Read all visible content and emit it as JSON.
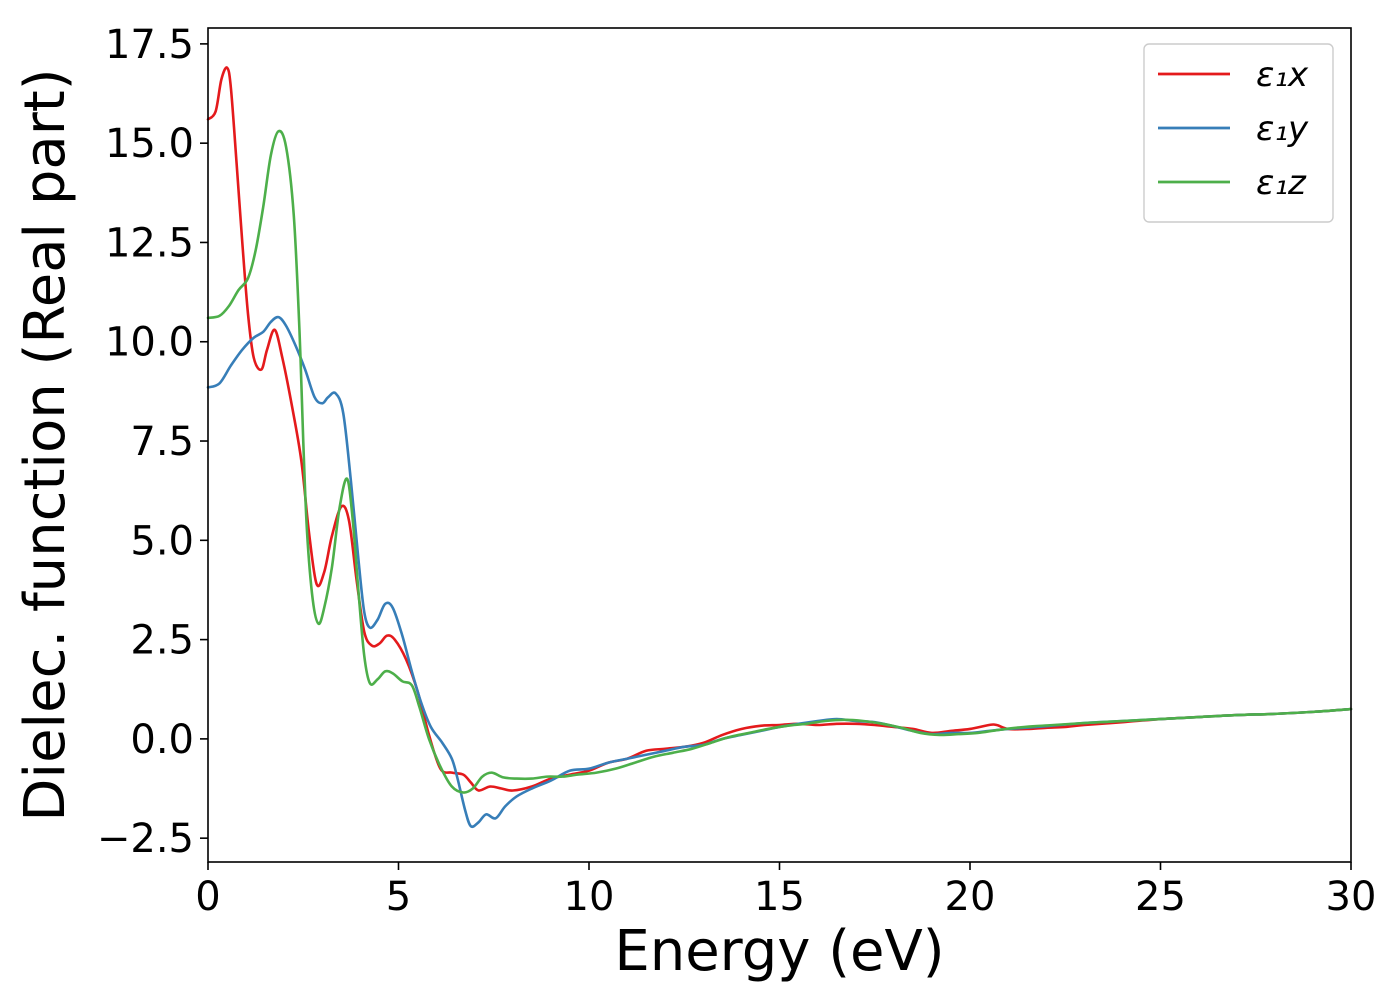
{
  "chart_data": {
    "type": "line",
    "xlabel": "Energy (eV)",
    "ylabel": "Dielec. function (Real part)",
    "xlim": [
      0,
      30
    ],
    "ylim": [
      -3.1,
      17.9
    ],
    "xticks": [
      0,
      5,
      10,
      15,
      20,
      25,
      30
    ],
    "xtick_labels": [
      "0",
      "5",
      "10",
      "15",
      "20",
      "25",
      "30"
    ],
    "yticks": [
      -2.5,
      0,
      2.5,
      5,
      7.5,
      10,
      12.5,
      15,
      17.5
    ],
    "ytick_labels": [
      "−2.5",
      "0.0",
      "2.5",
      "5.0",
      "7.5",
      "10.0",
      "12.5",
      "15.0",
      "17.5"
    ],
    "grid": false,
    "legend_position": "top-right",
    "series": [
      {
        "name": "ε₁x",
        "color": "#e41a1c",
        "points": [
          [
            0,
            15.6
          ],
          [
            0.2,
            15.8
          ],
          [
            0.35,
            16.6
          ],
          [
            0.5,
            16.9
          ],
          [
            0.6,
            16.4
          ],
          [
            0.75,
            14.5
          ],
          [
            0.9,
            12.5
          ],
          [
            1.05,
            10.7
          ],
          [
            1.2,
            9.6
          ],
          [
            1.4,
            9.3
          ],
          [
            1.55,
            9.8
          ],
          [
            1.75,
            10.3
          ],
          [
            1.95,
            9.6
          ],
          [
            2.2,
            8.4
          ],
          [
            2.45,
            7.0
          ],
          [
            2.65,
            5.2
          ],
          [
            2.85,
            3.9
          ],
          [
            3.05,
            4.2
          ],
          [
            3.25,
            5.1
          ],
          [
            3.5,
            5.85
          ],
          [
            3.7,
            5.5
          ],
          [
            3.9,
            4.0
          ],
          [
            4.1,
            2.7
          ],
          [
            4.3,
            2.35
          ],
          [
            4.5,
            2.4
          ],
          [
            4.7,
            2.6
          ],
          [
            4.9,
            2.5
          ],
          [
            5.2,
            2.0
          ],
          [
            5.5,
            1.2
          ],
          [
            5.8,
            0.1
          ],
          [
            6.1,
            -0.75
          ],
          [
            6.4,
            -0.85
          ],
          [
            6.7,
            -0.9
          ],
          [
            6.9,
            -1.1
          ],
          [
            7.1,
            -1.3
          ],
          [
            7.4,
            -1.2
          ],
          [
            7.7,
            -1.25
          ],
          [
            8.0,
            -1.3
          ],
          [
            8.5,
            -1.2
          ],
          [
            9.0,
            -1.0
          ],
          [
            9.5,
            -0.9
          ],
          [
            10.0,
            -0.8
          ],
          [
            10.5,
            -0.6
          ],
          [
            11.0,
            -0.5
          ],
          [
            11.5,
            -0.3
          ],
          [
            12.0,
            -0.25
          ],
          [
            12.5,
            -0.2
          ],
          [
            13.0,
            -0.1
          ],
          [
            13.5,
            0.1
          ],
          [
            14.0,
            0.25
          ],
          [
            14.5,
            0.33
          ],
          [
            15.0,
            0.35
          ],
          [
            15.5,
            0.38
          ],
          [
            16.0,
            0.35
          ],
          [
            16.5,
            0.38
          ],
          [
            17.0,
            0.38
          ],
          [
            17.5,
            0.35
          ],
          [
            18.0,
            0.3
          ],
          [
            18.5,
            0.25
          ],
          [
            19.0,
            0.15
          ],
          [
            19.5,
            0.2
          ],
          [
            20.0,
            0.25
          ],
          [
            20.5,
            0.35
          ],
          [
            20.7,
            0.35
          ],
          [
            21.0,
            0.25
          ],
          [
            21.5,
            0.25
          ],
          [
            22.0,
            0.28
          ],
          [
            22.5,
            0.3
          ],
          [
            23.0,
            0.35
          ],
          [
            24.0,
            0.42
          ],
          [
            25.0,
            0.5
          ],
          [
            26.0,
            0.55
          ],
          [
            27.0,
            0.6
          ],
          [
            28.0,
            0.63
          ],
          [
            29.0,
            0.68
          ],
          [
            30.0,
            0.75
          ]
        ]
      },
      {
        "name": "ε₁y",
        "color": "#377eb8",
        "points": [
          [
            0,
            8.85
          ],
          [
            0.3,
            8.95
          ],
          [
            0.6,
            9.4
          ],
          [
            0.9,
            9.8
          ],
          [
            1.2,
            10.1
          ],
          [
            1.45,
            10.25
          ],
          [
            1.65,
            10.5
          ],
          [
            1.85,
            10.62
          ],
          [
            2.05,
            10.4
          ],
          [
            2.3,
            9.9
          ],
          [
            2.55,
            9.3
          ],
          [
            2.8,
            8.6
          ],
          [
            3.0,
            8.45
          ],
          [
            3.15,
            8.6
          ],
          [
            3.35,
            8.7
          ],
          [
            3.55,
            8.2
          ],
          [
            3.75,
            6.5
          ],
          [
            3.95,
            4.5
          ],
          [
            4.1,
            3.2
          ],
          [
            4.25,
            2.8
          ],
          [
            4.45,
            3.0
          ],
          [
            4.65,
            3.4
          ],
          [
            4.85,
            3.3
          ],
          [
            5.1,
            2.6
          ],
          [
            5.35,
            1.7
          ],
          [
            5.6,
            0.9
          ],
          [
            5.85,
            0.3
          ],
          [
            6.15,
            -0.1
          ],
          [
            6.4,
            -0.5
          ],
          [
            6.55,
            -1.0
          ],
          [
            6.75,
            -1.8
          ],
          [
            6.9,
            -2.2
          ],
          [
            7.1,
            -2.1
          ],
          [
            7.3,
            -1.9
          ],
          [
            7.55,
            -2.0
          ],
          [
            7.8,
            -1.7
          ],
          [
            8.1,
            -1.45
          ],
          [
            8.5,
            -1.25
          ],
          [
            9.0,
            -1.05
          ],
          [
            9.5,
            -0.8
          ],
          [
            10.0,
            -0.75
          ],
          [
            10.5,
            -0.6
          ],
          [
            11.0,
            -0.5
          ],
          [
            11.5,
            -0.4
          ],
          [
            12.0,
            -0.3
          ],
          [
            12.5,
            -0.2
          ],
          [
            13.0,
            -0.15
          ],
          [
            13.5,
            0.0
          ],
          [
            14.0,
            0.1
          ],
          [
            14.5,
            0.2
          ],
          [
            15.0,
            0.3
          ],
          [
            15.5,
            0.38
          ],
          [
            16.0,
            0.45
          ],
          [
            16.5,
            0.5
          ],
          [
            17.0,
            0.45
          ],
          [
            17.5,
            0.42
          ],
          [
            18.0,
            0.32
          ],
          [
            18.5,
            0.2
          ],
          [
            19.0,
            0.12
          ],
          [
            19.5,
            0.15
          ],
          [
            20.0,
            0.15
          ],
          [
            20.5,
            0.2
          ],
          [
            21.0,
            0.25
          ],
          [
            22.0,
            0.32
          ],
          [
            23.0,
            0.4
          ],
          [
            24.0,
            0.45
          ],
          [
            25.0,
            0.5
          ],
          [
            26.0,
            0.55
          ],
          [
            27.0,
            0.6
          ],
          [
            28.0,
            0.63
          ],
          [
            29.0,
            0.68
          ],
          [
            30.0,
            0.75
          ]
        ]
      },
      {
        "name": "ε₁z",
        "color": "#4daf4a",
        "points": [
          [
            0,
            10.6
          ],
          [
            0.3,
            10.65
          ],
          [
            0.55,
            10.9
          ],
          [
            0.8,
            11.3
          ],
          [
            1.05,
            11.6
          ],
          [
            1.25,
            12.3
          ],
          [
            1.45,
            13.4
          ],
          [
            1.65,
            14.7
          ],
          [
            1.85,
            15.3
          ],
          [
            2.05,
            14.9
          ],
          [
            2.25,
            13.2
          ],
          [
            2.4,
            10.3
          ],
          [
            2.5,
            7.5
          ],
          [
            2.6,
            5.2
          ],
          [
            2.75,
            3.5
          ],
          [
            2.9,
            2.9
          ],
          [
            3.05,
            3.3
          ],
          [
            3.25,
            4.3
          ],
          [
            3.45,
            5.8
          ],
          [
            3.65,
            6.55
          ],
          [
            3.8,
            5.5
          ],
          [
            3.95,
            3.7
          ],
          [
            4.1,
            2.1
          ],
          [
            4.25,
            1.4
          ],
          [
            4.45,
            1.5
          ],
          [
            4.65,
            1.7
          ],
          [
            4.85,
            1.65
          ],
          [
            5.1,
            1.45
          ],
          [
            5.35,
            1.35
          ],
          [
            5.55,
            0.8
          ],
          [
            5.8,
            0.0
          ],
          [
            6.1,
            -0.7
          ],
          [
            6.4,
            -1.2
          ],
          [
            6.7,
            -1.35
          ],
          [
            6.95,
            -1.25
          ],
          [
            7.2,
            -0.95
          ],
          [
            7.45,
            -0.85
          ],
          [
            7.75,
            -0.97
          ],
          [
            8.1,
            -1.0
          ],
          [
            8.5,
            -1.0
          ],
          [
            8.9,
            -0.95
          ],
          [
            9.3,
            -0.95
          ],
          [
            9.7,
            -0.9
          ],
          [
            10.2,
            -0.85
          ],
          [
            10.7,
            -0.75
          ],
          [
            11.2,
            -0.6
          ],
          [
            11.7,
            -0.45
          ],
          [
            12.2,
            -0.35
          ],
          [
            12.7,
            -0.25
          ],
          [
            13.2,
            -0.1
          ],
          [
            13.7,
            0.05
          ],
          [
            14.2,
            0.15
          ],
          [
            14.7,
            0.25
          ],
          [
            15.2,
            0.33
          ],
          [
            15.7,
            0.38
          ],
          [
            16.2,
            0.45
          ],
          [
            16.7,
            0.48
          ],
          [
            17.2,
            0.45
          ],
          [
            17.7,
            0.38
          ],
          [
            18.2,
            0.28
          ],
          [
            18.7,
            0.15
          ],
          [
            19.2,
            0.1
          ],
          [
            19.7,
            0.12
          ],
          [
            20.2,
            0.15
          ],
          [
            20.7,
            0.22
          ],
          [
            21.2,
            0.28
          ],
          [
            21.7,
            0.32
          ],
          [
            22.2,
            0.35
          ],
          [
            23.0,
            0.4
          ],
          [
            24.0,
            0.45
          ],
          [
            25.0,
            0.5
          ],
          [
            26.0,
            0.55
          ],
          [
            27.0,
            0.6
          ],
          [
            28.0,
            0.63
          ],
          [
            29.0,
            0.68
          ],
          [
            30.0,
            0.75
          ]
        ]
      }
    ]
  }
}
